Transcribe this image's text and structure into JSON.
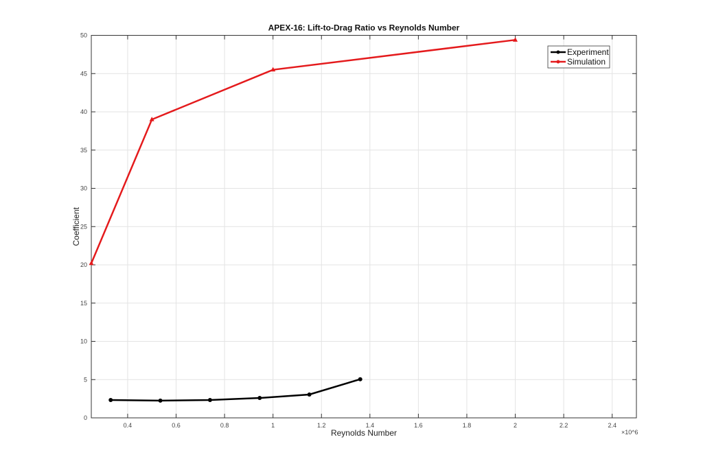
{
  "chart_data": {
    "type": "line",
    "title": "APEX-16: Lift-to-Drag Ratio vs Reynolds Number",
    "xlabel": "Reynolds Number",
    "ylabel": "Coefficient",
    "x_exponent_label": "×10^6",
    "x_exponent": "6",
    "xlim": [
      0.25,
      2.5
    ],
    "ylim": [
      0,
      50
    ],
    "xticks": [
      0.4,
      0.6,
      0.8,
      1,
      1.2,
      1.4,
      1.6,
      1.8,
      2,
      2.2,
      2.4
    ],
    "xtick_labels": [
      "0.4",
      "0.6",
      "0.8",
      "1",
      "1.2",
      "1.4",
      "1.6",
      "1.8",
      "2",
      "2.2",
      "2.4"
    ],
    "yticks": [
      0,
      5,
      10,
      15,
      20,
      25,
      30,
      35,
      40,
      45,
      50
    ],
    "ytick_labels": [
      "0",
      "5",
      "10",
      "15",
      "20",
      "25",
      "30",
      "35",
      "40",
      "45",
      "50"
    ],
    "grid": true,
    "legend_position": "top-right",
    "series": [
      {
        "name": "Experiment",
        "color": "#000000",
        "marker": "circle",
        "x": [
          0.33,
          0.535,
          0.74,
          0.945,
          1.15,
          1.36
        ],
        "y": [
          2.33,
          2.25,
          2.33,
          2.6,
          3.05,
          5.05
        ]
      },
      {
        "name": "Simulation",
        "color": "#e41a1c",
        "marker": "star",
        "x": [
          0.25,
          0.5,
          1.0,
          2.0
        ],
        "y": [
          20.2,
          39.0,
          45.5,
          49.4
        ]
      }
    ]
  }
}
